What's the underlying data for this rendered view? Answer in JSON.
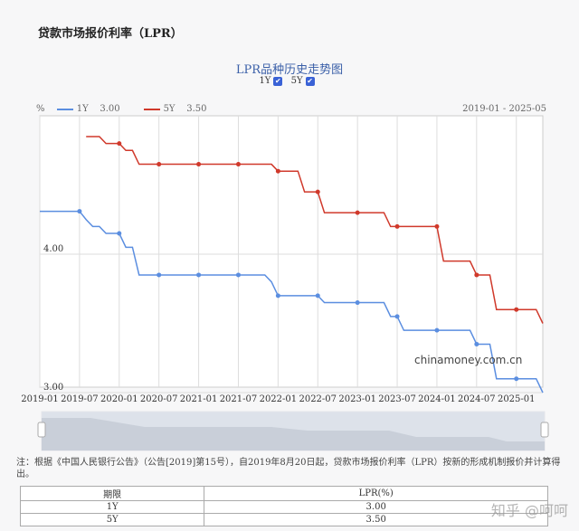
{
  "page_title": "贷款市场报价利率（LPR）",
  "watermark": "知乎 @呵呵",
  "source_label": "chinamoney.com.cn",
  "note": "注：根据《中国人民银行公告》（公告[2019]第15号），自2019年8月20日起，贷款市场报价利率（LPR）按新的形成机制报价并计算得出。",
  "table": {
    "headers": [
      "期限",
      "LPR(%)"
    ],
    "rows": [
      [
        "1Y",
        "3.00"
      ],
      [
        "5Y",
        "3.50"
      ]
    ]
  },
  "chart_data": {
    "type": "line",
    "title": "LPR品种历史走势图",
    "ylabel": "%",
    "range_label": "2019-01 - 2025-05",
    "toggles": [
      {
        "label": "1Y",
        "checked": true
      },
      {
        "label": "5Y",
        "checked": true
      }
    ],
    "ylim": [
      3.0,
      5.0
    ],
    "yticks": [
      "3.00",
      "4.00"
    ],
    "xticks": [
      "2019-01",
      "2019-07",
      "2020-01",
      "2020-07",
      "2021-01",
      "2021-07",
      "2022-01",
      "2022-07",
      "2023-01",
      "2023-07",
      "2024-01",
      "2024-07",
      "2025-01"
    ],
    "xlim": [
      "2019-01",
      "2025-05"
    ],
    "grid": true,
    "legend_position": "top-left",
    "series": [
      {
        "name": "1Y",
        "latest": "3.00",
        "color": "#5b8ee0",
        "steps": [
          [
            "2019-01",
            4.31
          ],
          [
            "2019-08",
            4.25
          ],
          [
            "2019-09",
            4.2
          ],
          [
            "2019-11",
            4.15
          ],
          [
            "2020-02",
            4.05
          ],
          [
            "2020-04",
            3.85
          ],
          [
            "2021-12",
            3.8
          ],
          [
            "2022-01",
            3.7
          ],
          [
            "2022-08",
            3.65
          ],
          [
            "2023-06",
            3.55
          ],
          [
            "2023-08",
            3.45
          ],
          [
            "2024-07",
            3.35
          ],
          [
            "2024-10",
            3.1
          ],
          [
            "2025-05",
            3.0
          ]
        ]
      },
      {
        "name": "5Y",
        "latest": "3.50",
        "color": "#d0392b",
        "steps": [
          [
            "2019-08",
            4.85
          ],
          [
            "2019-11",
            4.8
          ],
          [
            "2020-02",
            4.75
          ],
          [
            "2020-04",
            4.65
          ],
          [
            "2022-01",
            4.6
          ],
          [
            "2022-05",
            4.45
          ],
          [
            "2022-08",
            4.3
          ],
          [
            "2023-06",
            4.2
          ],
          [
            "2024-02",
            3.95
          ],
          [
            "2024-07",
            3.85
          ],
          [
            "2024-10",
            3.6
          ],
          [
            "2025-05",
            3.5
          ]
        ]
      }
    ]
  }
}
